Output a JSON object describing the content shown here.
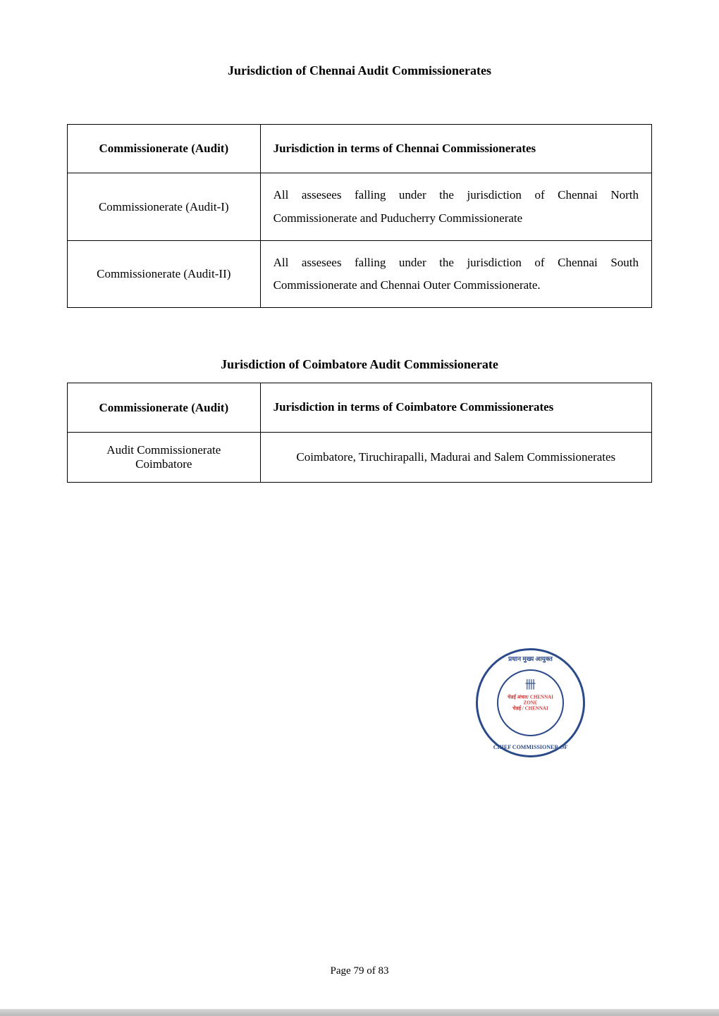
{
  "heading1": "Jurisdiction of Chennai Audit Commissionerates",
  "table1": {
    "header_left": "Commissionerate (Audit)",
    "header_right": "Jurisdiction in terms of Chennai Commissionerates",
    "rows": [
      {
        "left": "Commissionerate (Audit-I)",
        "right": "All assesees falling under the jurisdiction of Chennai North Commissionerate and Puducherry Commissionerate"
      },
      {
        "left": "Commissionerate (Audit-II)",
        "right": "All assesees falling under the jurisdiction of Chennai South Commissionerate and Chennai Outer Commissionerate."
      }
    ]
  },
  "heading2": "Jurisdiction of Coimbatore Audit Commissionerate",
  "table2": {
    "header_left": "Commissionerate (Audit)",
    "header_right": "Jurisdiction in terms of Coimbatore Commissionerates",
    "rows": [
      {
        "left": "Audit Commissionerate Coimbatore",
        "right": "Coimbatore, Tiruchirapalli, Madurai and Salem Commissionerates"
      }
    ]
  },
  "seal": {
    "top_text": "प्रधान मुख्य आयुक्त",
    "bottom_text": "CHIEF COMMISSIONER OF",
    "center_line1": "चेन्नई अंचल/ CHENNAI ZONE",
    "center_line2": "चेन्नई / CHENNAI",
    "emblem": "卌"
  },
  "page_number": "Page 79 of 83",
  "colors": {
    "text": "#000000",
    "seal_blue": "#2b4a8a",
    "seal_red": "#d04040",
    "background": "#ffffff"
  },
  "fonts": {
    "body_size": 17,
    "title_size": 18
  }
}
